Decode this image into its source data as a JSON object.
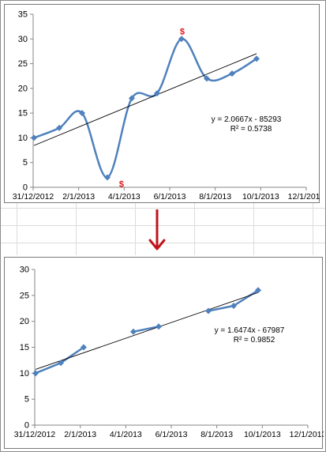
{
  "chart_data": [
    {
      "type": "scatter",
      "title": "",
      "xlabel": "",
      "ylabel": "",
      "smoothed": true,
      "ylim": [
        0,
        35
      ],
      "yticks": [
        0,
        5,
        10,
        15,
        20,
        25,
        30,
        35
      ],
      "xticks": [
        "31/12/2012",
        "2/1/2013",
        "4/1/2013",
        "6/1/2013",
        "8/1/2013",
        "10/1/2013",
        "12/1/2013"
      ],
      "series": [
        {
          "x": [
            "2013-01-01",
            "2013-02-01",
            "2013-03-01",
            "2013-04-01",
            "2013-05-01",
            "2013-06-01",
            "2013-07-01",
            "2013-08-01",
            "2013-09-01",
            "2013-10-01"
          ],
          "y": [
            10,
            12,
            15,
            2,
            18,
            19,
            30,
            22,
            23,
            26
          ],
          "color": "#4f81bd"
        }
      ],
      "trendline": {
        "type": "linear",
        "color": "#000000",
        "equation": "y = 2.0667x - 85293",
        "r_squared": "R² = 0.5738"
      },
      "outliers": [
        {
          "x": "2013-04-01",
          "y": 2,
          "marker": "$"
        },
        {
          "x": "2013-07-01",
          "y": 30,
          "marker": "$"
        }
      ],
      "outlier_color": "#e0161b",
      "grid": false
    },
    {
      "type": "scatter",
      "title": "",
      "xlabel": "",
      "ylabel": "",
      "smoothed": false,
      "ylim": [
        0,
        30
      ],
      "yticks": [
        0,
        5,
        10,
        15,
        20,
        25,
        30
      ],
      "xticks": [
        "31/12/2012",
        "2/1/2013",
        "4/1/2013",
        "6/1/2013",
        "8/1/2013",
        "10/1/2013",
        "12/1/2013"
      ],
      "series": [
        {
          "segments": [
            {
              "x": [
                "2013-01-01",
                "2013-02-01",
                "2013-03-01"
              ],
              "y": [
                10,
                12,
                15
              ]
            },
            {
              "x": [
                "2013-05-01",
                "2013-06-01"
              ],
              "y": [
                18,
                19
              ]
            },
            {
              "x": [
                "2013-08-01",
                "2013-09-01",
                "2013-10-01"
              ],
              "y": [
                22,
                23,
                26
              ]
            }
          ],
          "color": "#4f81bd"
        }
      ],
      "trendline": {
        "type": "linear",
        "color": "#000000",
        "equation": "y = 1.6474x - 67987",
        "r_squared": "R² = 0.9852"
      },
      "grid": false
    }
  ],
  "arrow": {
    "direction": "down",
    "color": "#c0141c"
  }
}
